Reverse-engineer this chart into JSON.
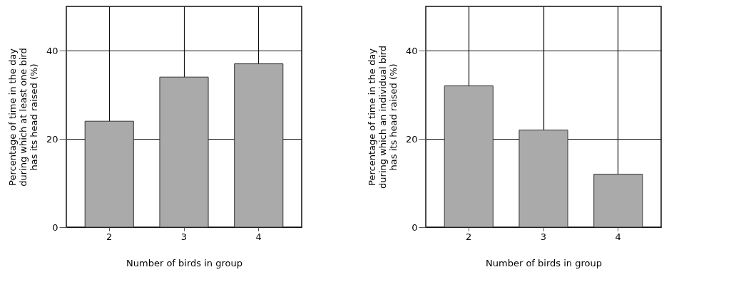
{
  "chart_data": [
    {
      "type": "bar",
      "categories": [
        "2",
        "3",
        "4"
      ],
      "values": [
        24,
        34,
        37
      ],
      "color": "#aaaaaa",
      "xlabel": "Number of birds in group",
      "ylabel": "Percentage of time in the day\nduring which at least one bird\nhas its head raised (%)",
      "ylim": [
        0,
        50
      ],
      "yticks": [
        0,
        20,
        40
      ],
      "grid": true
    },
    {
      "type": "bar",
      "categories": [
        "2",
        "3",
        "4"
      ],
      "values": [
        32,
        22,
        12
      ],
      "color": "#aaaaaa",
      "xlabel": "Number of birds in group",
      "ylabel": "Percentage of time in the day\nduring which an individual bird\nhas its head raised (%)",
      "ylim": [
        0,
        50
      ],
      "yticks": [
        0,
        20,
        40
      ],
      "grid": true
    }
  ]
}
